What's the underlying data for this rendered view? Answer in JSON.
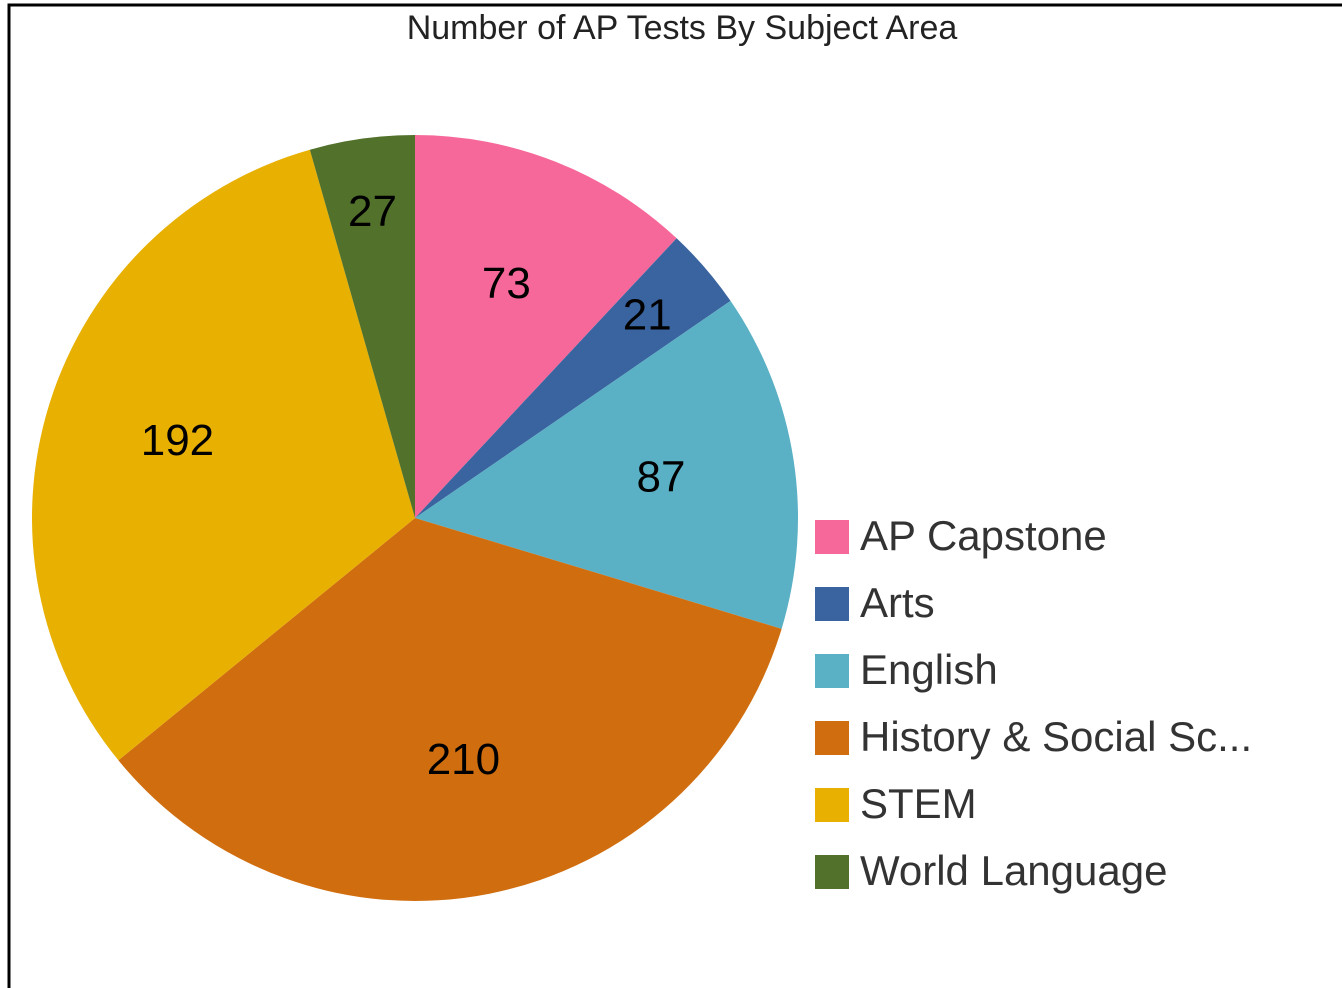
{
  "chart_data": {
    "type": "pie",
    "title": "Number of AP Tests By Subject Area",
    "categories": [
      "AP Capstone",
      "Arts",
      "English",
      "History & Social Sc...",
      "STEM",
      "World Language"
    ],
    "values": [
      73,
      21,
      87,
      210,
      192,
      27
    ],
    "colors": [
      "#f7689a",
      "#3a64a0",
      "#5ab0c4",
      "#d06e0f",
      "#e8b000",
      "#52712a"
    ],
    "legend": "right"
  }
}
